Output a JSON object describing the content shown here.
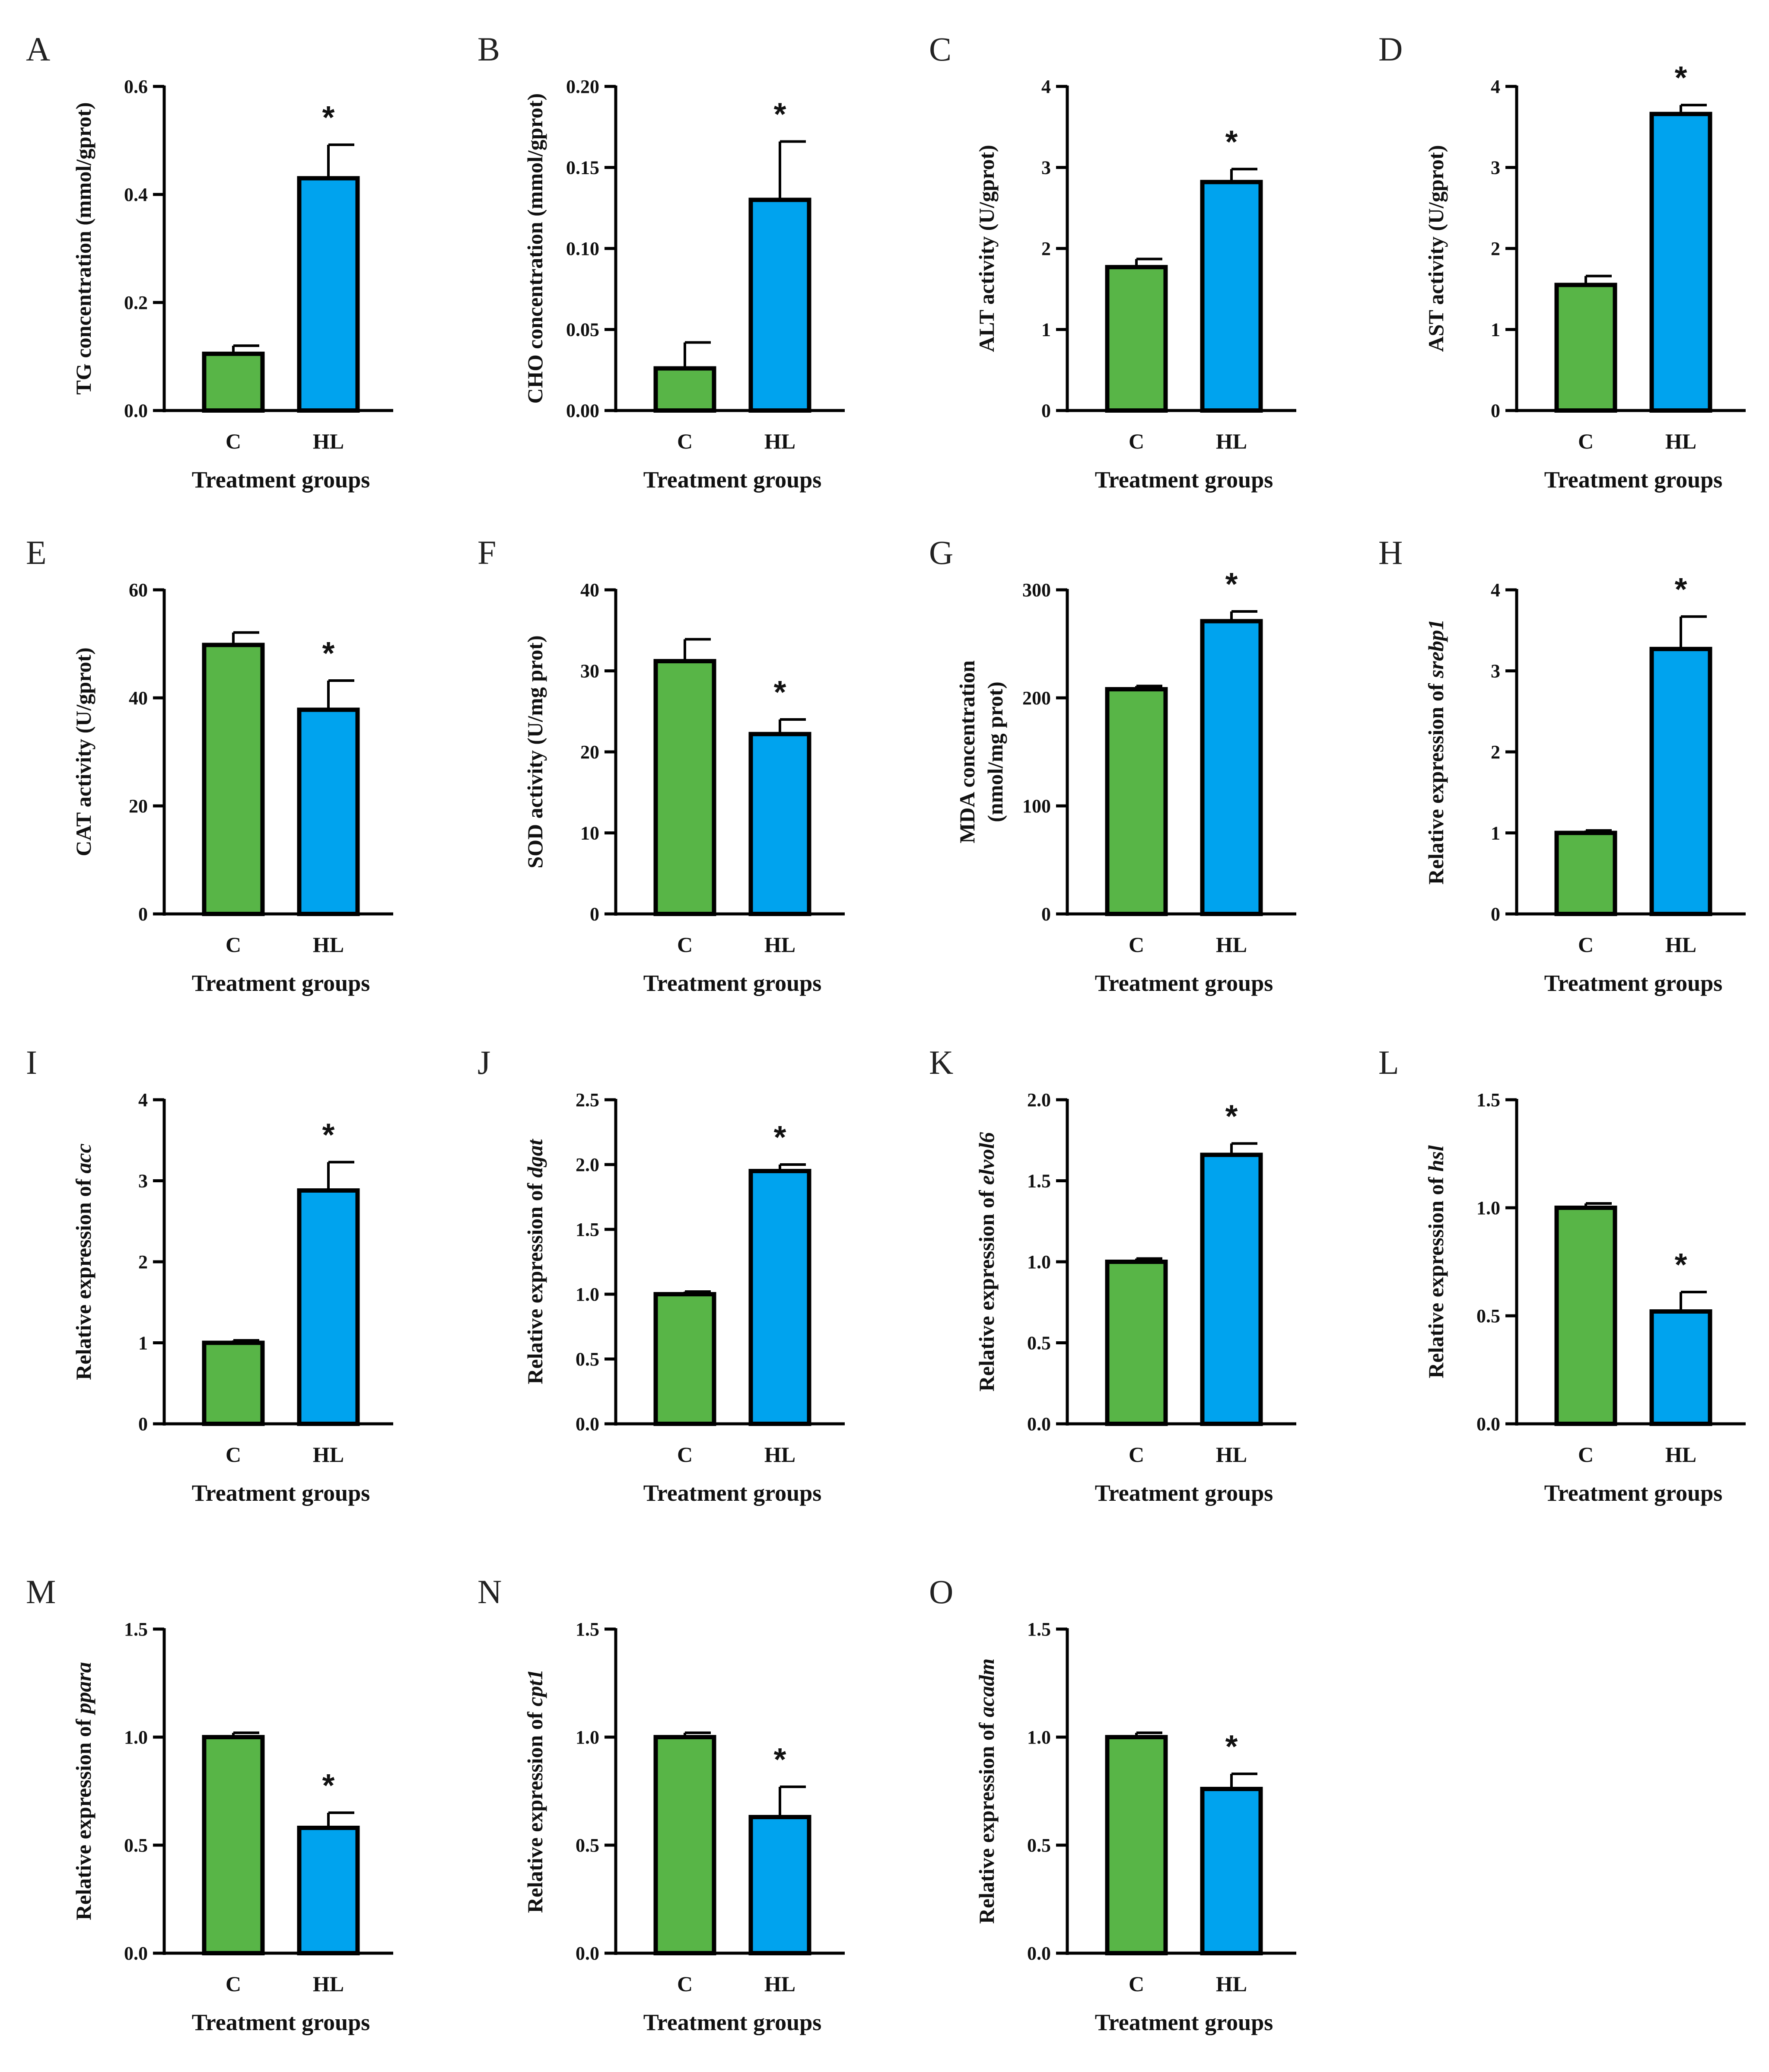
{
  "colors": {
    "control": "#58b547",
    "treatment": "#00a3ee",
    "edge": "#000000"
  },
  "chart_data": [
    {
      "id": "A",
      "type": "bar",
      "panel_label": "A",
      "ylabel_pre": "TG concentration (mmol/gprot)",
      "ylabel_italic": "",
      "ylabel_line2": "",
      "xlabel": "Treatment groups",
      "categories": [
        "C",
        "HL"
      ],
      "values": [
        0.105,
        0.43
      ],
      "errors": [
        0.015,
        0.062
      ],
      "ylim": [
        0,
        0.6
      ],
      "yticks": [
        0,
        0.2,
        0.4,
        0.6
      ],
      "tick_labels": [
        "0.0",
        "0.2",
        "0.4",
        "0.6"
      ],
      "significance": [
        "",
        "*"
      ]
    },
    {
      "id": "B",
      "type": "bar",
      "panel_label": "B",
      "ylabel_pre": "CHO concentration (mmol/gprot)",
      "ylabel_italic": "",
      "ylabel_line2": "",
      "xlabel": "Treatment groups",
      "categories": [
        "C",
        "HL"
      ],
      "values": [
        0.026,
        0.13
      ],
      "errors": [
        0.016,
        0.036
      ],
      "ylim": [
        0,
        0.2
      ],
      "yticks": [
        0,
        0.05,
        0.1,
        0.15,
        0.2
      ],
      "tick_labels": [
        "0.00",
        "0.05",
        "0.10",
        "0.15",
        "0.20"
      ],
      "significance": [
        "",
        "*"
      ]
    },
    {
      "id": "C",
      "type": "bar",
      "panel_label": "C",
      "ylabel_pre": "ALT activity (U/gprot)",
      "ylabel_italic": "",
      "ylabel_line2": "",
      "xlabel": "Treatment groups",
      "categories": [
        "C",
        "HL"
      ],
      "values": [
        1.77,
        2.82
      ],
      "errors": [
        0.1,
        0.16
      ],
      "ylim": [
        0,
        4
      ],
      "yticks": [
        0,
        1,
        2,
        3,
        4
      ],
      "tick_labels": [
        "0",
        "1",
        "2",
        "3",
        "4"
      ],
      "significance": [
        "",
        "*"
      ]
    },
    {
      "id": "D",
      "type": "bar",
      "panel_label": "D",
      "ylabel_pre": "AST activity (U/gprot)",
      "ylabel_italic": "",
      "ylabel_line2": "",
      "xlabel": "Treatment groups",
      "categories": [
        "C",
        "HL"
      ],
      "values": [
        1.55,
        3.66
      ],
      "errors": [
        0.11,
        0.11
      ],
      "ylim": [
        0,
        4
      ],
      "yticks": [
        0,
        1,
        2,
        3,
        4
      ],
      "tick_labels": [
        "0",
        "1",
        "2",
        "3",
        "4"
      ],
      "significance": [
        "",
        "*"
      ]
    },
    {
      "id": "E",
      "type": "bar",
      "panel_label": "E",
      "ylabel_pre": "CAT activity (U/gprot)",
      "ylabel_italic": "",
      "ylabel_line2": "",
      "xlabel": "Treatment groups",
      "categories": [
        "C",
        "HL"
      ],
      "values": [
        49.8,
        37.8
      ],
      "errors": [
        2.3,
        5.4
      ],
      "ylim": [
        0,
        60
      ],
      "yticks": [
        0,
        20,
        40,
        60
      ],
      "tick_labels": [
        "0",
        "20",
        "40",
        "60"
      ],
      "significance": [
        "",
        "*"
      ]
    },
    {
      "id": "F",
      "type": "bar",
      "panel_label": "F",
      "ylabel_pre": "SOD activity (U/mg prot)",
      "ylabel_italic": "",
      "ylabel_line2": "",
      "xlabel": "Treatment groups",
      "categories": [
        "C",
        "HL"
      ],
      "values": [
        31.2,
        22.2
      ],
      "errors": [
        2.7,
        1.8
      ],
      "ylim": [
        0,
        40
      ],
      "yticks": [
        0,
        10,
        20,
        30,
        40
      ],
      "tick_labels": [
        "0",
        "10",
        "20",
        "30",
        "40"
      ],
      "significance": [
        "",
        "*"
      ]
    },
    {
      "id": "G",
      "type": "bar",
      "panel_label": "G",
      "ylabel_pre": "MDA concentration",
      "ylabel_italic": "",
      "ylabel_line2": "(nmol/mg prot)",
      "xlabel": "Treatment groups",
      "categories": [
        "C",
        "HL"
      ],
      "values": [
        208,
        271
      ],
      "errors": [
        3,
        9
      ],
      "ylim": [
        0,
        300
      ],
      "yticks": [
        0,
        100,
        200,
        300
      ],
      "tick_labels": [
        "0",
        "100",
        "200",
        "300"
      ],
      "significance": [
        "",
        "*"
      ]
    },
    {
      "id": "H",
      "type": "bar",
      "panel_label": "H",
      "ylabel_pre": "Relative expression of ",
      "ylabel_italic": "srebp1",
      "ylabel_line2": "",
      "xlabel": "Treatment groups",
      "categories": [
        "C",
        "HL"
      ],
      "values": [
        1.0,
        3.27
      ],
      "errors": [
        0.03,
        0.4
      ],
      "ylim": [
        0,
        4
      ],
      "yticks": [
        0,
        1,
        2,
        3,
        4
      ],
      "tick_labels": [
        "0",
        "1",
        "2",
        "3",
        "4"
      ],
      "significance": [
        "",
        "*"
      ]
    },
    {
      "id": "I",
      "type": "bar",
      "panel_label": "I",
      "ylabel_pre": "Relative expression of ",
      "ylabel_italic": "acc",
      "ylabel_line2": "",
      "xlabel": "Treatment groups",
      "categories": [
        "C",
        "HL"
      ],
      "values": [
        1.0,
        2.88
      ],
      "errors": [
        0.03,
        0.35
      ],
      "ylim": [
        0,
        4
      ],
      "yticks": [
        0,
        1,
        2,
        3,
        4
      ],
      "tick_labels": [
        "0",
        "1",
        "2",
        "3",
        "4"
      ],
      "significance": [
        "",
        "*"
      ]
    },
    {
      "id": "J",
      "type": "bar",
      "panel_label": "J",
      "ylabel_pre": "Relative expression of ",
      "ylabel_italic": "dgat",
      "ylabel_line2": "",
      "xlabel": "Treatment groups",
      "categories": [
        "C",
        "HL"
      ],
      "values": [
        1.0,
        1.95
      ],
      "errors": [
        0.02,
        0.05
      ],
      "ylim": [
        0,
        2.5
      ],
      "yticks": [
        0,
        0.5,
        1,
        1.5,
        2,
        2.5
      ],
      "tick_labels": [
        "0.0",
        "0.5",
        "1.0",
        "1.5",
        "2.0",
        "2.5"
      ],
      "significance": [
        "",
        "*"
      ]
    },
    {
      "id": "K",
      "type": "bar",
      "panel_label": "K",
      "ylabel_pre": "Relative expression of ",
      "ylabel_italic": "elvol6",
      "ylabel_line2": "",
      "xlabel": "Treatment groups",
      "categories": [
        "C",
        "HL"
      ],
      "values": [
        1.0,
        1.66
      ],
      "errors": [
        0.02,
        0.07
      ],
      "ylim": [
        0,
        2
      ],
      "yticks": [
        0,
        0.5,
        1,
        1.5,
        2
      ],
      "tick_labels": [
        "0.0",
        "0.5",
        "1.0",
        "1.5",
        "2.0"
      ],
      "significance": [
        "",
        "*"
      ]
    },
    {
      "id": "L",
      "type": "bar",
      "panel_label": "L",
      "ylabel_pre": "Relative expression of ",
      "ylabel_italic": "hsl",
      "ylabel_line2": "",
      "xlabel": "Treatment groups",
      "categories": [
        "C",
        "HL"
      ],
      "values": [
        1.0,
        0.52
      ],
      "errors": [
        0.02,
        0.09
      ],
      "ylim": [
        0,
        1.5
      ],
      "yticks": [
        0,
        0.5,
        1,
        1.5
      ],
      "tick_labels": [
        "0.0",
        "0.5",
        "1.0",
        "1.5"
      ],
      "significance": [
        "",
        "*"
      ]
    },
    {
      "id": "M",
      "type": "bar",
      "panel_label": "M",
      "ylabel_pre": "Relative expression of ",
      "ylabel_italic": "ppara",
      "ylabel_line2": "",
      "xlabel": "Treatment groups",
      "categories": [
        "C",
        "HL"
      ],
      "values": [
        1.0,
        0.58
      ],
      "errors": [
        0.02,
        0.07
      ],
      "ylim": [
        0,
        1.5
      ],
      "yticks": [
        0,
        0.5,
        1,
        1.5
      ],
      "tick_labels": [
        "0.0",
        "0.5",
        "1.0",
        "1.5"
      ],
      "significance": [
        "",
        "*"
      ]
    },
    {
      "id": "N",
      "type": "bar",
      "panel_label": "N",
      "ylabel_pre": "Relative expression of ",
      "ylabel_italic": "cpt1",
      "ylabel_line2": "",
      "xlabel": "Treatment groups",
      "categories": [
        "C",
        "HL"
      ],
      "values": [
        1.0,
        0.63
      ],
      "errors": [
        0.02,
        0.14
      ],
      "ylim": [
        0,
        1.5
      ],
      "yticks": [
        0,
        0.5,
        1,
        1.5
      ],
      "tick_labels": [
        "0.0",
        "0.5",
        "1.0",
        "1.5"
      ],
      "significance": [
        "",
        "*"
      ]
    },
    {
      "id": "O",
      "type": "bar",
      "panel_label": "O",
      "ylabel_pre": "Relative expression of ",
      "ylabel_italic": "acadm",
      "ylabel_line2": "",
      "xlabel": "Treatment groups",
      "categories": [
        "C",
        "HL"
      ],
      "values": [
        1.0,
        0.76
      ],
      "errors": [
        0.02,
        0.07
      ],
      "ylim": [
        0,
        1.5
      ],
      "yticks": [
        0,
        0.5,
        1,
        1.5
      ],
      "tick_labels": [
        "0.0",
        "0.5",
        "1.0",
        "1.5"
      ],
      "significance": [
        "",
        "*"
      ]
    }
  ]
}
